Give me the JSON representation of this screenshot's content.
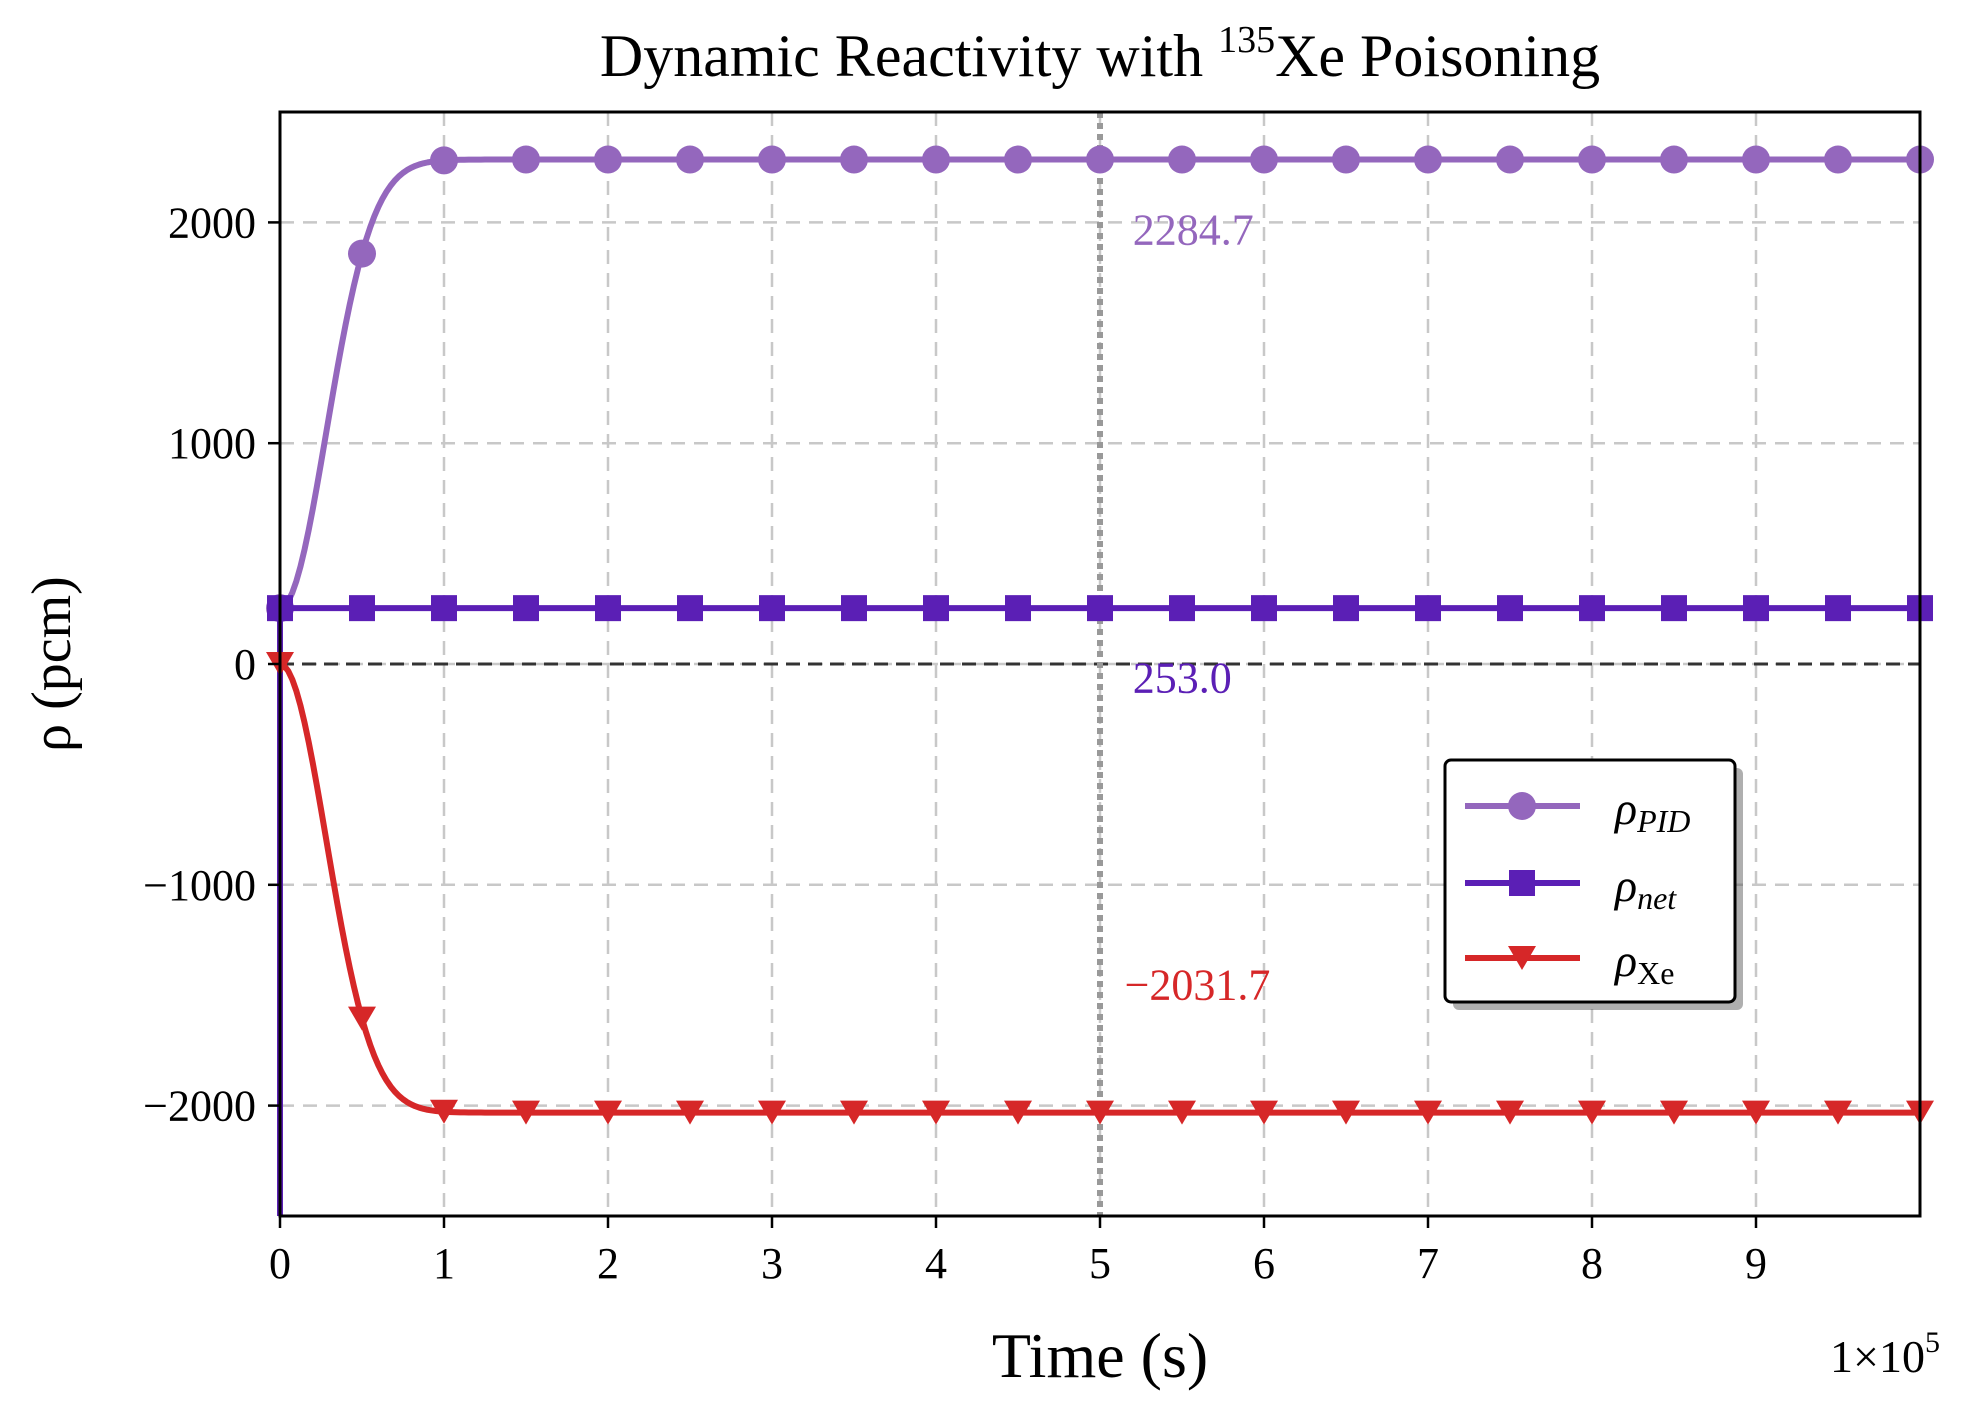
{
  "chart_data": {
    "type": "line",
    "title": {
      "prefix": "Dynamic Reactivity with ",
      "isotope_mass": "135",
      "isotope_symbol": "Xe",
      "suffix": " Poisoning"
    },
    "xlabel": "Time (s)",
    "ylabel": "ρ (pcm)",
    "x_multiplier_label": {
      "base": "1×10",
      "exponent": "5"
    },
    "xlim": [
      0,
      10
    ],
    "ylim": [
      -2500,
      2500
    ],
    "xticks": [
      0,
      1,
      2,
      3,
      4,
      5,
      6,
      7,
      8,
      9
    ],
    "xtick_labels": [
      "0",
      "1",
      "2",
      "3",
      "4",
      "5",
      "6",
      "7",
      "8",
      "9"
    ],
    "yticks": [
      -2000,
      -1000,
      0,
      1000,
      2000
    ],
    "ytick_labels": [
      "−2000",
      "−1000",
      "0",
      "1000",
      "2000"
    ],
    "grid": true,
    "reference_line": {
      "y": 0,
      "style": "dashed",
      "color": "#333333"
    },
    "marker_line": {
      "x": 5,
      "style": "dotted",
      "color": "#999999"
    },
    "legend_position": "center-right",
    "series": [
      {
        "name": "ρ_PID",
        "legend_symbol": "ρ",
        "legend_subscript": "PID",
        "color": "#9467bd",
        "marker": "circle",
        "model": {
          "type": "sigmoid",
          "start": 253.0,
          "final": 2284.7,
          "tau": 0.4,
          "power": 2
        },
        "annotation": {
          "text": "2284.7",
          "x": 5.2,
          "y": 1900
        }
      },
      {
        "name": "ρ_net",
        "legend_symbol": "ρ",
        "legend_subscript": "net",
        "color": "#5b1fb5",
        "marker": "square",
        "model": {
          "type": "constant",
          "value": 253.0,
          "initial_drop_to": -2500
        },
        "annotation": {
          "text": "253.0",
          "x": 5.2,
          "y": -130
        }
      },
      {
        "name": "ρ_Xe",
        "legend_symbol": "ρ",
        "legend_subscript": "Xe",
        "color": "#d62728",
        "marker": "triangle-down",
        "model": {
          "type": "sigmoid",
          "start": 0,
          "final": -2031.7,
          "tau": 0.4,
          "power": 2
        },
        "annotation": {
          "text": "−2031.7",
          "x": 5.15,
          "y": -1520
        }
      }
    ]
  }
}
